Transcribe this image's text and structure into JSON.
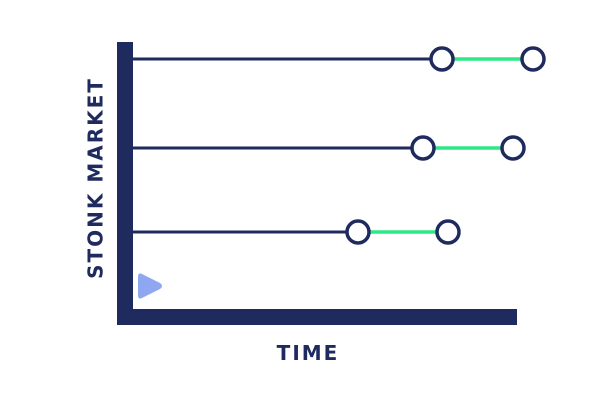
{
  "labels": {
    "y_axis": "STONK MARKET",
    "x_axis": "TIME"
  },
  "colors": {
    "navy": "#1f2a5e",
    "green": "#2ee886",
    "play": "#8fa7f0",
    "node_fill": "#ffffff"
  },
  "icons": {
    "play": "play-icon"
  }
}
